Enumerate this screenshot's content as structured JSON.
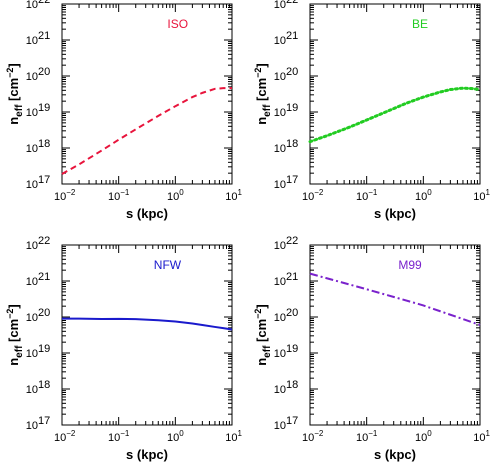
{
  "chart_data": [
    {
      "type": "line",
      "label": "ISO",
      "label_color": "#e8143c",
      "xlabel": "s (kpc)",
      "ylabel_main": "n",
      "ylabel_sub": "eff",
      "ylabel_unit_open": " [cm",
      "ylabel_unit_exp": "−2",
      "ylabel_unit_close": "]",
      "x_scale": "log",
      "y_scale": "log",
      "xlim": [
        0.01,
        10
      ],
      "ylim": [
        1e+17,
        1e+22
      ],
      "x_ticks": [
        {
          "base": "10",
          "exp": "−2"
        },
        {
          "base": "10",
          "exp": "−1"
        },
        {
          "base": "10",
          "exp": "0"
        },
        {
          "base": "10",
          "exp": "1"
        }
      ],
      "y_ticks": [
        {
          "base": "10",
          "exp": "17"
        },
        {
          "base": "10",
          "exp": "18"
        },
        {
          "base": "10",
          "exp": "19"
        },
        {
          "base": "10",
          "exp": "20"
        },
        {
          "base": "10",
          "exp": "21"
        },
        {
          "base": "10",
          "exp": "22"
        }
      ],
      "series": [
        {
          "color": "#e8143c",
          "style": "dashed",
          "x": [
            0.01,
            0.02,
            0.05,
            0.1,
            0.2,
            0.5,
            1,
            2,
            3,
            5,
            7,
            10
          ],
          "y": [
            1.9e+17,
            3.5e+17,
            8.5e+17,
            1.7e+18,
            3.3e+18,
            7.8e+18,
            1.45e+19,
            2.6e+19,
            3.4e+19,
            4.4e+19,
            4.6e+19,
            4.6e+19
          ]
        }
      ]
    },
    {
      "type": "line",
      "label": "BE",
      "label_color": "#22cc22",
      "xlabel": "s (kpc)",
      "ylabel_main": "n",
      "ylabel_sub": "eff",
      "ylabel_unit_open": " [cm",
      "ylabel_unit_exp": "−2",
      "ylabel_unit_close": "]",
      "x_scale": "log",
      "y_scale": "log",
      "xlim": [
        0.01,
        10
      ],
      "ylim": [
        1e+17,
        1e+22
      ],
      "x_ticks": [
        {
          "base": "10",
          "exp": "−2"
        },
        {
          "base": "10",
          "exp": "−1"
        },
        {
          "base": "10",
          "exp": "0"
        },
        {
          "base": "10",
          "exp": "1"
        }
      ],
      "y_ticks": [
        {
          "base": "10",
          "exp": "17"
        },
        {
          "base": "10",
          "exp": "18"
        },
        {
          "base": "10",
          "exp": "19"
        },
        {
          "base": "10",
          "exp": "20"
        },
        {
          "base": "10",
          "exp": "21"
        },
        {
          "base": "10",
          "exp": "22"
        }
      ],
      "series": [
        {
          "color": "#22cc22",
          "style": "dotted",
          "x": [
            0.01,
            0.02,
            0.05,
            0.1,
            0.2,
            0.5,
            1,
            2,
            3,
            5,
            7,
            10
          ],
          "y": [
            1.5e+18,
            2.2e+18,
            3.8e+18,
            6e+18,
            9.5e+18,
            1.75e+19,
            2.6e+19,
            3.6e+19,
            4.2e+19,
            4.6e+19,
            4.5e+19,
            4.2e+19
          ]
        }
      ]
    },
    {
      "type": "line",
      "label": "NFW",
      "label_color": "#1a1acc",
      "xlabel": "s (kpc)",
      "ylabel_main": "n",
      "ylabel_sub": "eff",
      "ylabel_unit_open": " [cm",
      "ylabel_unit_exp": "−2",
      "ylabel_unit_close": "]",
      "x_scale": "log",
      "y_scale": "log",
      "xlim": [
        0.01,
        10
      ],
      "ylim": [
        1e+17,
        1e+22
      ],
      "x_ticks": [
        {
          "base": "10",
          "exp": "−2"
        },
        {
          "base": "10",
          "exp": "−1"
        },
        {
          "base": "10",
          "exp": "0"
        },
        {
          "base": "10",
          "exp": "1"
        }
      ],
      "y_ticks": [
        {
          "base": "10",
          "exp": "17"
        },
        {
          "base": "10",
          "exp": "18"
        },
        {
          "base": "10",
          "exp": "19"
        },
        {
          "base": "10",
          "exp": "20"
        },
        {
          "base": "10",
          "exp": "21"
        },
        {
          "base": "10",
          "exp": "22"
        }
      ],
      "series": [
        {
          "color": "#1a1acc",
          "style": "solid",
          "x": [
            0.01,
            0.02,
            0.05,
            0.1,
            0.2,
            0.5,
            1,
            2,
            3,
            5,
            7,
            10
          ],
          "y": [
            9e+19,
            9e+19,
            8.8e+19,
            8.9e+19,
            8.7e+19,
            8.1e+19,
            7.5e+19,
            6.6e+19,
            6e+19,
            5.3e+19,
            4.9e+19,
            4.5e+19
          ]
        }
      ]
    },
    {
      "type": "line",
      "label": "M99",
      "label_color": "#7a22cc",
      "xlabel": "s (kpc)",
      "ylabel_main": "n",
      "ylabel_sub": "eff",
      "ylabel_unit_open": " [cm",
      "ylabel_unit_exp": "−2",
      "ylabel_unit_close": "]",
      "x_scale": "log",
      "y_scale": "log",
      "xlim": [
        0.01,
        10
      ],
      "ylim": [
        1e+17,
        1e+22
      ],
      "x_ticks": [
        {
          "base": "10",
          "exp": "−2"
        },
        {
          "base": "10",
          "exp": "−1"
        },
        {
          "base": "10",
          "exp": "0"
        },
        {
          "base": "10",
          "exp": "1"
        }
      ],
      "y_ticks": [
        {
          "base": "10",
          "exp": "17"
        },
        {
          "base": "10",
          "exp": "18"
        },
        {
          "base": "10",
          "exp": "19"
        },
        {
          "base": "10",
          "exp": "20"
        },
        {
          "base": "10",
          "exp": "21"
        },
        {
          "base": "10",
          "exp": "22"
        }
      ],
      "series": [
        {
          "color": "#7a22cc",
          "style": "dashdot",
          "x": [
            0.01,
            0.1,
            1,
            10
          ],
          "y": [
            1.6e+21,
            5.9e+20,
            2.1e+20,
            6e+19
          ]
        }
      ]
    }
  ]
}
